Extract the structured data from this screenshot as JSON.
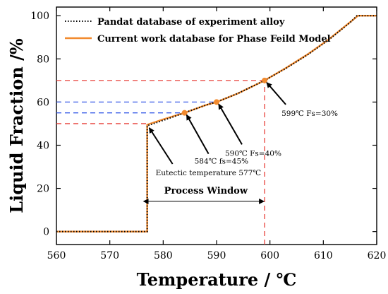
{
  "chart_data": {
    "type": "line",
    "xlabel": "Temperature / ℃",
    "ylabel": "Liquid Fraction /%",
    "xlim": [
      560,
      620
    ],
    "ylim": [
      -6,
      104
    ],
    "xticks": [
      560,
      570,
      580,
      590,
      600,
      610,
      620
    ],
    "yticks": [
      0,
      20,
      40,
      60,
      80,
      100
    ],
    "legend_position": "top-left",
    "series": [
      {
        "name": "Pandat database of experiment alloy",
        "style": "dotted",
        "color": "#000000",
        "x": [
          560,
          577,
          577,
          580,
          584,
          588,
          590,
          594,
          599,
          603,
          607,
          611,
          615,
          616.3,
          620
        ],
        "y": [
          0,
          0,
          49,
          51.5,
          55,
          58.6,
          60,
          64,
          70,
          75.6,
          81.8,
          88.8,
          96.8,
          100,
          100
        ]
      },
      {
        "name": "Current work database for Phase Feild Model",
        "style": "solid",
        "color": "#f28a2e",
        "x": [
          560,
          577,
          577,
          580,
          584,
          588,
          590,
          594,
          599,
          603,
          607,
          611,
          615,
          616.5,
          620
        ],
        "y": [
          0,
          0,
          49.5,
          52,
          55,
          58.6,
          60,
          64,
          70,
          75.8,
          82,
          89,
          97,
          100,
          100
        ]
      }
    ],
    "markers": [
      {
        "x": 584,
        "y": 55
      },
      {
        "x": 590,
        "y": 60
      },
      {
        "x": 599,
        "y": 70
      }
    ],
    "reference_lines": [
      {
        "y": 50,
        "x_to": 577,
        "color": "#e8413a"
      },
      {
        "y": 55,
        "x_to": 584,
        "color": "#3a5ce8"
      },
      {
        "y": 60,
        "x_to": 590,
        "color": "#3a5ce8"
      },
      {
        "y": 70,
        "x_to": 599,
        "color": "#e8413a"
      },
      {
        "x": 599,
        "y_from": -6,
        "y_to": 70,
        "color": "#e8413a"
      }
    ],
    "process_window": {
      "label": "Process Window",
      "x_from": 577,
      "x_to": 599,
      "y": 14
    },
    "annotations": [
      {
        "text": "Eutectic temperature 577℃",
        "point_x": 577,
        "point_y": 49
      },
      {
        "text": "584℃ fs=45%",
        "point_x": 584,
        "point_y": 55
      },
      {
        "text": "590℃ Fs=40%",
        "point_x": 590,
        "point_y": 60
      },
      {
        "text": "599℃ Fs=30%",
        "point_x": 599,
        "point_y": 70
      }
    ]
  }
}
